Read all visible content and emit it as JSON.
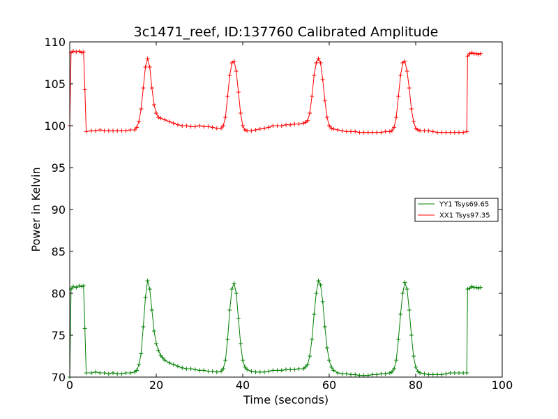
{
  "chart_data": {
    "type": "line",
    "title": "3c1471_reef, ID:137760 Calibrated Amplitude",
    "xlabel": "Time (seconds)",
    "ylabel": "Power in Kelvin",
    "xlim": [
      0,
      100
    ],
    "ylim": [
      70,
      110
    ],
    "xticks": [
      0,
      20,
      40,
      60,
      80,
      100
    ],
    "yticks": [
      70,
      75,
      80,
      85,
      90,
      95,
      100,
      105,
      110
    ],
    "grid": false,
    "legend_position": "center-right",
    "marker": "+",
    "series": [
      {
        "name": "YY1 Tsys69.65",
        "color": "#008000",
        "points": [
          [
            0.0,
            70.0
          ],
          [
            0.3,
            80.5
          ],
          [
            0.8,
            80.8
          ],
          [
            1.5,
            80.7
          ],
          [
            2.2,
            80.9
          ],
          [
            2.8,
            80.8
          ],
          [
            3.2,
            80.9
          ],
          [
            3.5,
            75.8
          ],
          [
            3.8,
            70.5
          ],
          [
            5,
            70.5
          ],
          [
            6,
            70.6
          ],
          [
            7,
            70.5
          ],
          [
            8,
            70.5
          ],
          [
            9,
            70.4
          ],
          [
            10,
            70.5
          ],
          [
            11,
            70.4
          ],
          [
            12,
            70.4
          ],
          [
            13,
            70.5
          ],
          [
            14,
            70.5
          ],
          [
            15,
            70.6
          ],
          [
            15.5,
            70.8
          ],
          [
            16,
            71.5
          ],
          [
            16.5,
            72.8
          ],
          [
            17,
            76.0
          ],
          [
            17.5,
            79.5
          ],
          [
            18,
            81.5
          ],
          [
            18.5,
            80.5
          ],
          [
            19,
            78.0
          ],
          [
            19.5,
            75.5
          ],
          [
            20,
            74.0
          ],
          [
            20.5,
            73.2
          ],
          [
            21,
            72.6
          ],
          [
            21.5,
            72.3
          ],
          [
            22,
            72.0
          ],
          [
            23,
            71.7
          ],
          [
            24,
            71.5
          ],
          [
            25,
            71.3
          ],
          [
            26,
            71.1
          ],
          [
            27,
            71.0
          ],
          [
            28,
            71.0
          ],
          [
            29,
            70.9
          ],
          [
            30,
            70.8
          ],
          [
            31,
            70.8
          ],
          [
            32,
            70.7
          ],
          [
            33,
            70.7
          ],
          [
            34,
            70.6
          ],
          [
            35,
            70.7
          ],
          [
            35.5,
            71.0
          ],
          [
            36,
            72.0
          ],
          [
            36.5,
            74.5
          ],
          [
            37,
            78.0
          ],
          [
            37.5,
            80.5
          ],
          [
            38,
            81.2
          ],
          [
            38.5,
            80.0
          ],
          [
            39,
            77.0
          ],
          [
            39.5,
            74.0
          ],
          [
            40,
            72.0
          ],
          [
            40.5,
            71.2
          ],
          [
            41,
            70.9
          ],
          [
            42,
            70.7
          ],
          [
            43,
            70.6
          ],
          [
            44,
            70.6
          ],
          [
            45,
            70.6
          ],
          [
            46,
            70.7
          ],
          [
            47,
            70.8
          ],
          [
            48,
            70.8
          ],
          [
            49,
            70.8
          ],
          [
            50,
            70.9
          ],
          [
            51,
            70.9
          ],
          [
            52,
            70.9
          ],
          [
            53,
            71.0
          ],
          [
            54,
            71.0
          ],
          [
            54.5,
            71.2
          ],
          [
            55,
            71.5
          ],
          [
            55.5,
            72.5
          ],
          [
            56,
            74.5
          ],
          [
            56.5,
            77.5
          ],
          [
            57,
            80.0
          ],
          [
            57.5,
            81.5
          ],
          [
            58,
            81.0
          ],
          [
            58.5,
            79.0
          ],
          [
            59,
            76.0
          ],
          [
            59.5,
            73.5
          ],
          [
            60,
            72.0
          ],
          [
            60.5,
            71.2
          ],
          [
            61,
            70.8
          ],
          [
            62,
            70.5
          ],
          [
            63,
            70.4
          ],
          [
            64,
            70.4
          ],
          [
            65,
            70.3
          ],
          [
            66,
            70.3
          ],
          [
            67,
            70.2
          ],
          [
            68,
            70.2
          ],
          [
            69,
            70.2
          ],
          [
            70,
            70.3
          ],
          [
            71,
            70.3
          ],
          [
            72,
            70.4
          ],
          [
            73,
            70.4
          ],
          [
            74,
            70.5
          ],
          [
            74.5,
            70.6
          ],
          [
            75,
            71.0
          ],
          [
            75.5,
            72.0
          ],
          [
            76,
            74.5
          ],
          [
            76.5,
            77.5
          ],
          [
            77,
            80.0
          ],
          [
            77.5,
            81.3
          ],
          [
            78,
            80.5
          ],
          [
            78.5,
            78.0
          ],
          [
            79,
            75.0
          ],
          [
            79.5,
            72.5
          ],
          [
            80,
            71.2
          ],
          [
            80.5,
            70.7
          ],
          [
            81,
            70.5
          ],
          [
            82,
            70.4
          ],
          [
            83,
            70.3
          ],
          [
            84,
            70.3
          ],
          [
            85,
            70.3
          ],
          [
            86,
            70.3
          ],
          [
            87,
            70.4
          ],
          [
            88,
            70.5
          ],
          [
            89,
            70.5
          ],
          [
            90,
            70.5
          ],
          [
            91,
            70.5
          ],
          [
            91.8,
            70.5
          ],
          [
            92.0,
            80.5
          ],
          [
            92.5,
            80.6
          ],
          [
            93,
            80.8
          ],
          [
            93.5,
            80.7
          ],
          [
            94,
            80.7
          ],
          [
            94.5,
            80.6
          ],
          [
            95,
            80.7
          ]
        ]
      },
      {
        "name": "XX1 Tsys97.35",
        "color": "#ff0000",
        "points": [
          [
            0.0,
            100.0
          ],
          [
            0.3,
            108.7
          ],
          [
            0.8,
            108.9
          ],
          [
            1.5,
            108.8
          ],
          [
            2.2,
            108.9
          ],
          [
            2.8,
            108.7
          ],
          [
            3.2,
            108.8
          ],
          [
            3.5,
            104.3
          ],
          [
            3.8,
            99.3
          ],
          [
            5,
            99.4
          ],
          [
            6,
            99.4
          ],
          [
            7,
            99.5
          ],
          [
            8,
            99.4
          ],
          [
            9,
            99.4
          ],
          [
            10,
            99.4
          ],
          [
            11,
            99.4
          ],
          [
            12,
            99.4
          ],
          [
            13,
            99.4
          ],
          [
            14,
            99.5
          ],
          [
            15,
            99.5
          ],
          [
            15.5,
            99.8
          ],
          [
            16,
            100.5
          ],
          [
            16.5,
            102.0
          ],
          [
            17,
            104.5
          ],
          [
            17.5,
            107.0
          ],
          [
            18,
            108.0
          ],
          [
            18.5,
            107.0
          ],
          [
            19,
            104.5
          ],
          [
            19.5,
            102.5
          ],
          [
            20,
            101.5
          ],
          [
            20.5,
            101.0
          ],
          [
            21,
            100.9
          ],
          [
            22,
            100.7
          ],
          [
            23,
            100.5
          ],
          [
            24,
            100.3
          ],
          [
            25,
            100.1
          ],
          [
            26,
            100.0
          ],
          [
            27,
            100.0
          ],
          [
            28,
            99.9
          ],
          [
            29,
            99.9
          ],
          [
            30,
            100.0
          ],
          [
            31,
            99.9
          ],
          [
            32,
            99.9
          ],
          [
            33,
            99.8
          ],
          [
            34,
            99.7
          ],
          [
            35,
            99.7
          ],
          [
            35.5,
            100.0
          ],
          [
            36,
            101.0
          ],
          [
            36.5,
            103.5
          ],
          [
            37,
            106.0
          ],
          [
            37.5,
            107.5
          ],
          [
            38,
            107.7
          ],
          [
            38.5,
            106.5
          ],
          [
            39,
            104.0
          ],
          [
            39.5,
            101.5
          ],
          [
            40,
            100.0
          ],
          [
            40.5,
            99.5
          ],
          [
            41,
            99.4
          ],
          [
            42,
            99.4
          ],
          [
            43,
            99.5
          ],
          [
            44,
            99.6
          ],
          [
            45,
            99.7
          ],
          [
            46,
            99.8
          ],
          [
            47,
            100.0
          ],
          [
            48,
            100.0
          ],
          [
            49,
            100.0
          ],
          [
            50,
            100.1
          ],
          [
            51,
            100.1
          ],
          [
            52,
            100.2
          ],
          [
            53,
            100.2
          ],
          [
            54,
            100.3
          ],
          [
            54.5,
            100.4
          ],
          [
            55,
            100.6
          ],
          [
            55.5,
            101.5
          ],
          [
            56,
            103.5
          ],
          [
            56.5,
            106.0
          ],
          [
            57,
            107.5
          ],
          [
            57.5,
            108.0
          ],
          [
            58,
            107.5
          ],
          [
            58.5,
            105.5
          ],
          [
            59,
            103.0
          ],
          [
            59.5,
            101.0
          ],
          [
            60,
            100.0
          ],
          [
            60.5,
            99.7
          ],
          [
            61,
            99.6
          ],
          [
            62,
            99.5
          ],
          [
            63,
            99.4
          ],
          [
            64,
            99.3
          ],
          [
            65,
            99.3
          ],
          [
            66,
            99.3
          ],
          [
            67,
            99.2
          ],
          [
            68,
            99.2
          ],
          [
            69,
            99.2
          ],
          [
            70,
            99.2
          ],
          [
            71,
            99.2
          ],
          [
            72,
            99.2
          ],
          [
            73,
            99.3
          ],
          [
            74,
            99.3
          ],
          [
            74.5,
            99.4
          ],
          [
            75,
            99.8
          ],
          [
            75.5,
            101.0
          ],
          [
            76,
            103.5
          ],
          [
            76.5,
            106.0
          ],
          [
            77,
            107.5
          ],
          [
            77.5,
            107.7
          ],
          [
            78,
            106.5
          ],
          [
            78.5,
            104.5
          ],
          [
            79,
            102.0
          ],
          [
            79.5,
            100.5
          ],
          [
            80,
            99.7
          ],
          [
            80.5,
            99.5
          ],
          [
            81,
            99.4
          ],
          [
            82,
            99.4
          ],
          [
            83,
            99.4
          ],
          [
            84,
            99.3
          ],
          [
            85,
            99.2
          ],
          [
            86,
            99.2
          ],
          [
            87,
            99.2
          ],
          [
            88,
            99.2
          ],
          [
            89,
            99.2
          ],
          [
            90,
            99.2
          ],
          [
            91,
            99.2
          ],
          [
            91.8,
            99.3
          ],
          [
            92.0,
            108.3
          ],
          [
            92.5,
            108.6
          ],
          [
            93,
            108.7
          ],
          [
            93.5,
            108.6
          ],
          [
            94,
            108.6
          ],
          [
            94.5,
            108.5
          ],
          [
            95,
            108.6
          ]
        ]
      }
    ]
  }
}
